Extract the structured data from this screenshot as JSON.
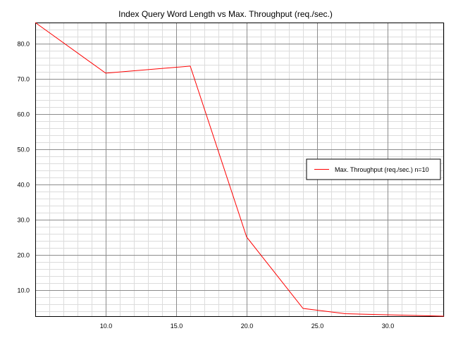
{
  "chart_data": {
    "type": "line",
    "title": "Index Query Word Length vs Max. Throughput (req./sec.)",
    "xlabel": "",
    "ylabel": "",
    "xlim": [
      5.0,
      34.0
    ],
    "ylim": [
      2.3,
      86.0
    ],
    "x_ticks": [
      "10.0",
      "15.0",
      "20.0",
      "25.0",
      "30.0"
    ],
    "x_tick_values": [
      10,
      15,
      20,
      25,
      30
    ],
    "y_ticks": [
      "10.0",
      "20.0",
      "30.0",
      "40.0",
      "50.0",
      "60.0",
      "70.0",
      "80.0"
    ],
    "y_tick_values": [
      10,
      20,
      30,
      40,
      50,
      60,
      70,
      80
    ],
    "grid": true,
    "legend_position": "right",
    "series": [
      {
        "name": "Max. Throughput (req./sec.) n=10",
        "color": "#ff0000",
        "x": [
          5,
          10,
          16,
          20,
          24,
          27,
          34
        ],
        "y": [
          86.0,
          71.6,
          73.6,
          25.0,
          4.7,
          3.2,
          2.5
        ]
      }
    ]
  }
}
